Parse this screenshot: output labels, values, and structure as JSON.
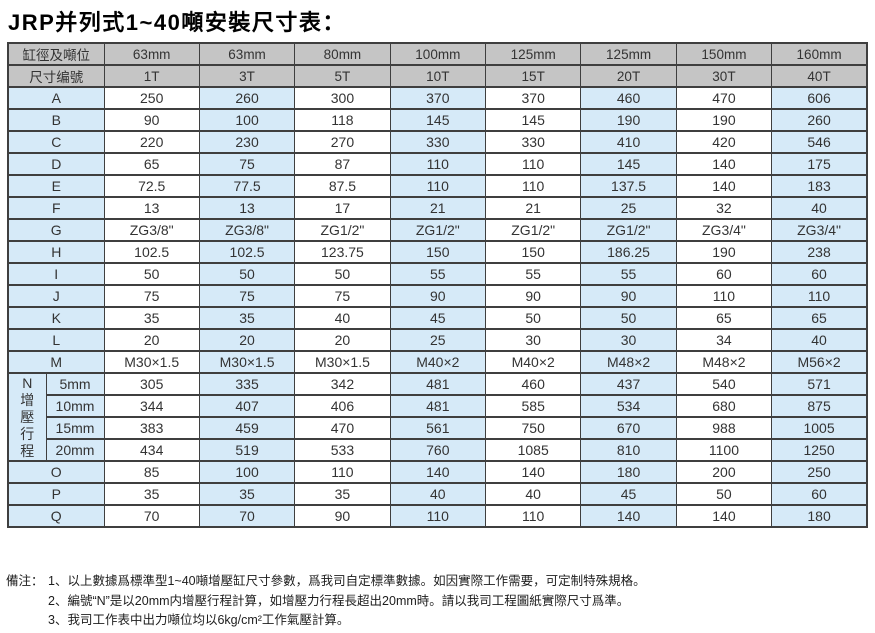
{
  "title": "JRP并列式1~40噸安裝尺寸表：",
  "table": {
    "corner_header_1": "缸徑及噸位",
    "corner_header_2": "尺寸编號",
    "bore_sizes": [
      "63mm",
      "63mm",
      "80mm",
      "100mm",
      "125mm",
      "125mm",
      "150mm",
      "160mm"
    ],
    "tonnages": [
      "1T",
      "3T",
      "5T",
      "10T",
      "15T",
      "20T",
      "30T",
      "40T"
    ],
    "rows": [
      {
        "label": "A",
        "values": [
          "250",
          "260",
          "300",
          "370",
          "370",
          "460",
          "470",
          "606"
        ]
      },
      {
        "label": "B",
        "values": [
          "90",
          "100",
          "118",
          "145",
          "145",
          "190",
          "190",
          "260"
        ]
      },
      {
        "label": "C",
        "values": [
          "220",
          "230",
          "270",
          "330",
          "330",
          "410",
          "420",
          "546"
        ]
      },
      {
        "label": "D",
        "values": [
          "65",
          "75",
          "87",
          "110",
          "110",
          "145",
          "140",
          "175"
        ]
      },
      {
        "label": "E",
        "values": [
          "72.5",
          "77.5",
          "87.5",
          "110",
          "110",
          "137.5",
          "140",
          "183"
        ]
      },
      {
        "label": "F",
        "values": [
          "13",
          "13",
          "17",
          "21",
          "21",
          "25",
          "32",
          "40"
        ]
      },
      {
        "label": "G",
        "values": [
          "ZG3/8\"",
          "ZG3/8\"",
          "ZG1/2\"",
          "ZG1/2\"",
          "ZG1/2\"",
          "ZG1/2\"",
          "ZG3/4\"",
          "ZG3/4\""
        ]
      },
      {
        "label": "H",
        "values": [
          "102.5",
          "102.5",
          "123.75",
          "150",
          "150",
          "186.25",
          "190",
          "238"
        ]
      },
      {
        "label": "I",
        "values": [
          "50",
          "50",
          "50",
          "55",
          "55",
          "55",
          "60",
          "60"
        ]
      },
      {
        "label": "J",
        "values": [
          "75",
          "75",
          "75",
          "90",
          "90",
          "90",
          "110",
          "110"
        ]
      },
      {
        "label": "K",
        "values": [
          "35",
          "35",
          "40",
          "45",
          "50",
          "50",
          "65",
          "65"
        ]
      },
      {
        "label": "L",
        "values": [
          "20",
          "20",
          "20",
          "25",
          "30",
          "30",
          "34",
          "40"
        ]
      },
      {
        "label": "M",
        "values": [
          "M30×1.5",
          "M30×1.5",
          "M30×1.5",
          "M40×2",
          "M40×2",
          "M48×2",
          "M48×2",
          "M56×2"
        ]
      }
    ],
    "n_block": {
      "vertical_label": "N增壓行程",
      "rows": [
        {
          "label": "5mm",
          "values": [
            "305",
            "335",
            "342",
            "481",
            "460",
            "437",
            "540",
            "571"
          ]
        },
        {
          "label": "10mm",
          "values": [
            "344",
            "407",
            "406",
            "481",
            "585",
            "534",
            "680",
            "875"
          ]
        },
        {
          "label": "15mm",
          "values": [
            "383",
            "459",
            "470",
            "561",
            "750",
            "670",
            "988",
            "1005"
          ]
        },
        {
          "label": "20mm",
          "values": [
            "434",
            "519",
            "533",
            "760",
            "1085",
            "810",
            "1100",
            "1250"
          ]
        }
      ]
    },
    "tail_rows": [
      {
        "label": "O",
        "values": [
          "85",
          "100",
          "110",
          "140",
          "140",
          "180",
          "200",
          "250"
        ]
      },
      {
        "label": "P",
        "values": [
          "35",
          "35",
          "35",
          "40",
          "40",
          "45",
          "50",
          "60"
        ]
      },
      {
        "label": "Q",
        "values": [
          "70",
          "70",
          "90",
          "110",
          "110",
          "140",
          "140",
          "180"
        ]
      }
    ]
  },
  "notes": {
    "prefix": "備注：",
    "items": [
      "1、以上數據爲標準型1~40噸增壓缸尺寸參數，爲我司自定標準數據。如因實際工作需要，可定制特殊規格。",
      "2、編號“N”是以20mm内增壓行程計算，如增壓力行程長超出20mm時。請以我司工程圖紙實際尺寸爲準。",
      "3、我司工作表中出力噸位均以6kg/cm²工作氣壓計算。"
    ]
  },
  "colors": {
    "header_bg": "#c5c5c5",
    "cell_blue": "#d6eaf8",
    "cell_white": "#ffffff",
    "border": "#3f3f3f",
    "text": "#333333"
  }
}
